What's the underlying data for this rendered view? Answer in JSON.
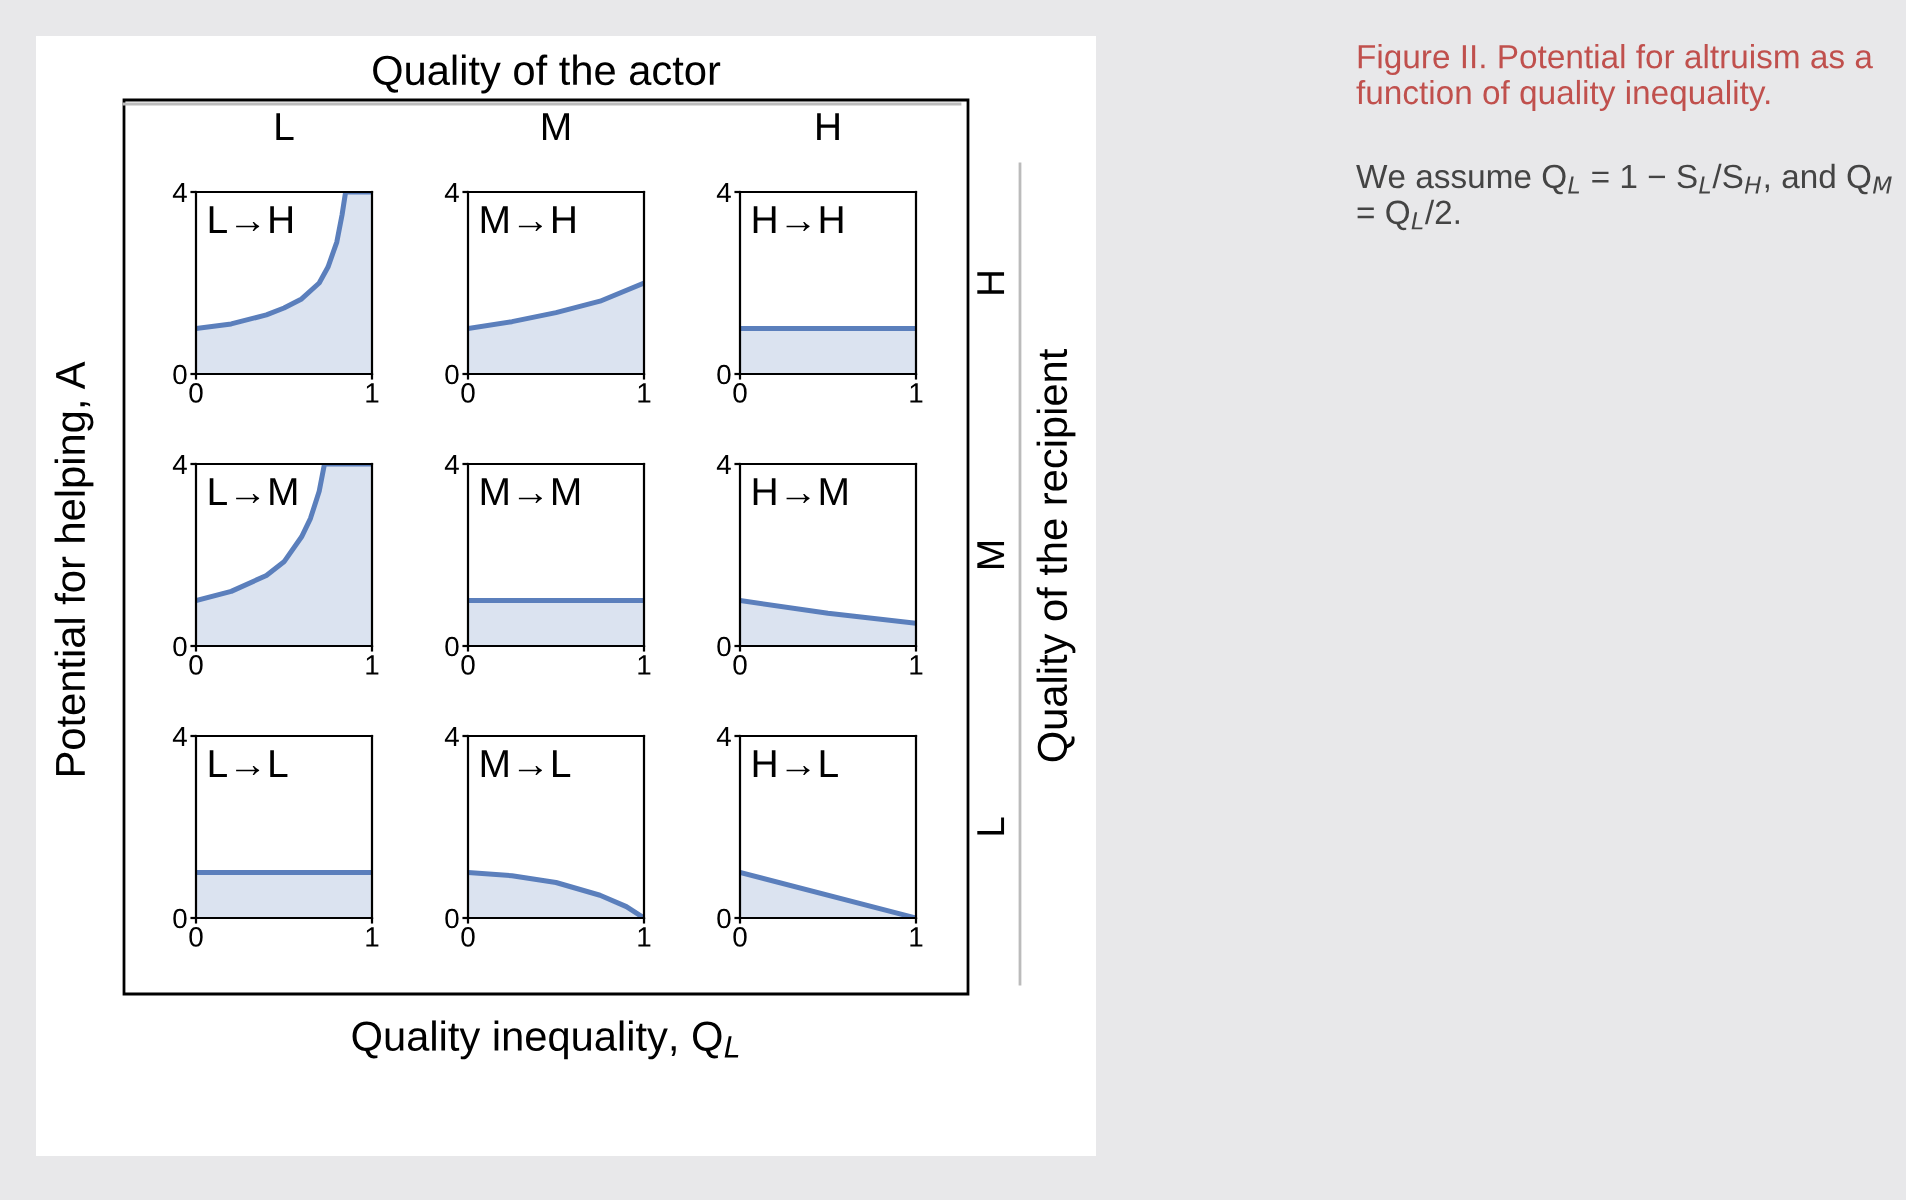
{
  "chart_data": [
    {
      "type": "area",
      "title": "L→H",
      "x": [
        0,
        0.2,
        0.4,
        0.5,
        0.6,
        0.7,
        0.75,
        0.8,
        0.83,
        0.85,
        0.9,
        1
      ],
      "series": [
        {
          "color": "#5b7fbc",
          "values": [
            1,
            1.1,
            1.3,
            1.45,
            1.65,
            2.0,
            2.35,
            2.9,
            3.5,
            4,
            4,
            4
          ]
        }
      ],
      "xlim": [
        0,
        1
      ],
      "ylim": [
        0,
        4
      ],
      "xticks": [
        0,
        1
      ],
      "yticks": [
        0,
        4
      ]
    },
    {
      "type": "area",
      "title": "M→H",
      "x": [
        0,
        0.25,
        0.5,
        0.75,
        1
      ],
      "series": [
        {
          "color": "#5b7fbc",
          "values": [
            1,
            1.15,
            1.35,
            1.6,
            2
          ]
        }
      ],
      "xlim": [
        0,
        1
      ],
      "ylim": [
        0,
        4
      ],
      "xticks": [
        0,
        1
      ],
      "yticks": [
        0,
        4
      ]
    },
    {
      "type": "area",
      "title": "H→H",
      "x": [
        0,
        1
      ],
      "series": [
        {
          "color": "#5b7fbc",
          "values": [
            1,
            1
          ]
        }
      ],
      "xlim": [
        0,
        1
      ],
      "ylim": [
        0,
        4
      ],
      "xticks": [
        0,
        1
      ],
      "yticks": [
        0,
        4
      ]
    },
    {
      "type": "area",
      "title": "L→M",
      "x": [
        0,
        0.2,
        0.4,
        0.5,
        0.6,
        0.65,
        0.7,
        0.73,
        0.8,
        1
      ],
      "series": [
        {
          "color": "#5b7fbc",
          "values": [
            1,
            1.2,
            1.55,
            1.85,
            2.4,
            2.8,
            3.4,
            4,
            4,
            4
          ]
        }
      ],
      "xlim": [
        0,
        1
      ],
      "ylim": [
        0,
        4
      ],
      "xticks": [
        0,
        1
      ],
      "yticks": [
        0,
        4
      ]
    },
    {
      "type": "area",
      "title": "M→M",
      "x": [
        0,
        1
      ],
      "series": [
        {
          "color": "#5b7fbc",
          "values": [
            1,
            1
          ]
        }
      ],
      "xlim": [
        0,
        1
      ],
      "ylim": [
        0,
        4
      ],
      "xticks": [
        0,
        1
      ],
      "yticks": [
        0,
        4
      ]
    },
    {
      "type": "area",
      "title": "H→M",
      "x": [
        0,
        0.5,
        1
      ],
      "series": [
        {
          "color": "#5b7fbc",
          "values": [
            1,
            0.72,
            0.5
          ]
        }
      ],
      "xlim": [
        0,
        1
      ],
      "ylim": [
        0,
        4
      ],
      "xticks": [
        0,
        1
      ],
      "yticks": [
        0,
        4
      ]
    },
    {
      "type": "area",
      "title": "L→L",
      "x": [
        0,
        1
      ],
      "series": [
        {
          "color": "#5b7fbc",
          "values": [
            1,
            1
          ]
        }
      ],
      "xlim": [
        0,
        1
      ],
      "ylim": [
        0,
        4
      ],
      "xticks": [
        0,
        1
      ],
      "yticks": [
        0,
        4
      ]
    },
    {
      "type": "area",
      "title": "M→L",
      "x": [
        0,
        0.25,
        0.5,
        0.75,
        0.9,
        1
      ],
      "series": [
        {
          "color": "#5b7fbc",
          "values": [
            1,
            0.93,
            0.78,
            0.5,
            0.25,
            0
          ]
        }
      ],
      "xlim": [
        0,
        1
      ],
      "ylim": [
        0,
        4
      ],
      "xticks": [
        0,
        1
      ],
      "yticks": [
        0,
        4
      ]
    },
    {
      "type": "area",
      "title": "H→L",
      "x": [
        0,
        1
      ],
      "series": [
        {
          "color": "#5b7fbc",
          "values": [
            1,
            0
          ]
        }
      ],
      "xlim": [
        0,
        1
      ],
      "ylim": [
        0,
        4
      ],
      "xticks": [
        0,
        1
      ],
      "yticks": [
        0,
        4
      ]
    },
    {
      "type": "other",
      "title": "Quality of the actor",
      "categories": [
        "L",
        "M",
        "H"
      ],
      "y_categories": [
        "H",
        "M",
        "L"
      ],
      "xlabel": "Quality inequality, Q$_{L}$",
      "ylabel": "Potential for helping, A",
      "y2label": "Quality of the recipient",
      "annotations": [
        "Figure II. Potential for altruism as a function of quality inequality.",
        "We assume Q$_{L}$ = 1 − S$_{L}$/S$_{H}$, and Q$_{M}$ = Q$_{L}$/2."
      ]
    }
  ]
}
